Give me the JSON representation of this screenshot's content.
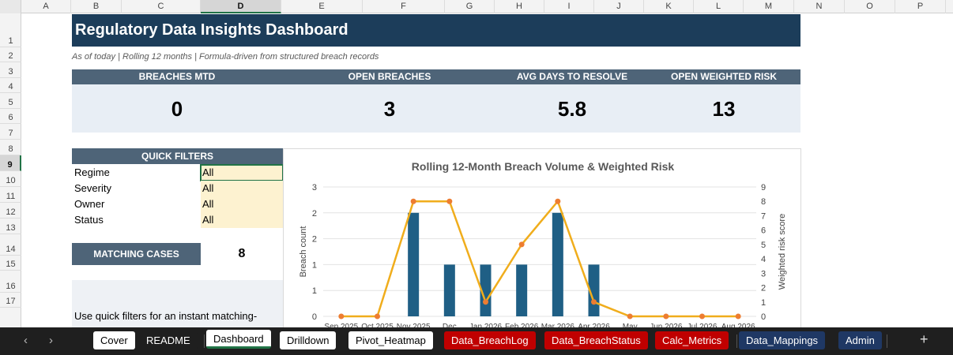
{
  "columns": [
    "A",
    "B",
    "C",
    "D",
    "E",
    "F",
    "G",
    "H",
    "I",
    "J",
    "K",
    "L",
    "M",
    "N",
    "O",
    "P"
  ],
  "selected_column": "D",
  "rows": [
    "1",
    "2",
    "3",
    "4",
    "5",
    "6",
    "7",
    "8",
    "9",
    "10",
    "11",
    "12",
    "13",
    "14",
    "15",
    "16",
    "17"
  ],
  "selected_row": "9",
  "dashboard": {
    "title": "Regulatory Data Insights Dashboard",
    "subtitle": "As of today | Rolling 12 months | Formula-driven from structured breach records",
    "kpis": [
      {
        "label": "BREACHES MTD",
        "value": "0"
      },
      {
        "label": "OPEN BREACHES",
        "value": "3"
      },
      {
        "label": "AVG DAYS TO RESOLVE",
        "value": "5.8"
      },
      {
        "label": "OPEN WEIGHTED RISK",
        "value": "13"
      }
    ],
    "quick_filters": {
      "header": "QUICK FILTERS",
      "items": [
        {
          "label": "Regime",
          "value": "All"
        },
        {
          "label": "Severity",
          "value": "All"
        },
        {
          "label": "Owner",
          "value": "All"
        },
        {
          "label": "Status",
          "value": "All"
        }
      ]
    },
    "matching_cases": {
      "label": "MATCHING CASES",
      "value": "8"
    },
    "note": "Use quick filters for an instant matching-"
  },
  "chart_data": {
    "type": "bar",
    "title": "Rolling 12-Month Breach Volume & Weighted Risk",
    "categories": [
      "Sep 2025",
      "Oct 2025",
      "Nov 2025",
      "Dec",
      "Jan 2026",
      "Feb 2026",
      "Mar 2026",
      "Apr 2026",
      "May",
      "Jun 2026",
      "Jul 2026",
      "Aug 2026"
    ],
    "series": [
      {
        "type": "bar",
        "axis": "left",
        "values": [
          0,
          0,
          2,
          1,
          1,
          1,
          2,
          1,
          0,
          0,
          0,
          0
        ],
        "color": "#1f5f85"
      },
      {
        "type": "line",
        "axis": "right",
        "values": [
          0,
          0,
          8,
          8,
          1,
          5,
          8,
          1,
          0,
          0,
          0,
          0
        ],
        "color": "#f0ad1c",
        "marker_color": "#ed7d31"
      }
    ],
    "left_axis": {
      "label": "Breach count",
      "ticks": [
        "0",
        "1",
        "1",
        "2",
        "2",
        "3"
      ],
      "ylim": [
        0,
        2.5
      ]
    },
    "right_axis": {
      "label": "Weighted risk score",
      "ticks": [
        "0",
        "1",
        "2",
        "3",
        "4",
        "5",
        "6",
        "7",
        "8",
        "9"
      ],
      "ylim": [
        0,
        9
      ]
    },
    "gridlines": true,
    "legend": "none"
  },
  "sheet_tabs": [
    {
      "label": "Cover",
      "style": "white"
    },
    {
      "label": "README",
      "style": "plain"
    },
    {
      "label": "Dashboard",
      "style": "active"
    },
    {
      "label": "Drilldown",
      "style": "white"
    },
    {
      "label": "Pivot_Heatmap",
      "style": "white"
    },
    {
      "label": "Data_BreachLog",
      "style": "red"
    },
    {
      "label": "Data_BreachStatus",
      "style": "red"
    },
    {
      "label": "Calc_Metrics",
      "style": "red"
    },
    {
      "label": "Data_Mappings",
      "style": "navy"
    },
    {
      "label": "Admin",
      "style": "navy"
    }
  ],
  "colors": {
    "title_bg": "#1c3d5a",
    "header_bg": "#4e6478",
    "kpi_bg": "#e8eef5",
    "filter_bg": "#fdf2d0",
    "accent": "#217346"
  }
}
